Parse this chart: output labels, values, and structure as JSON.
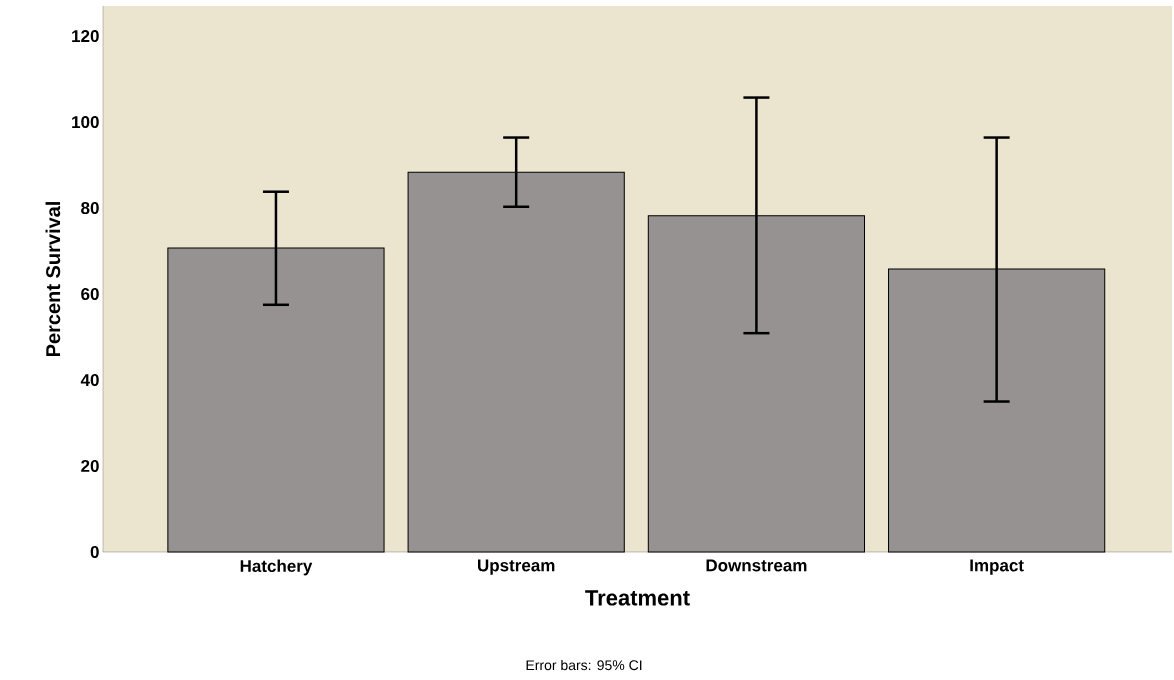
{
  "chart_data": {
    "type": "bar",
    "xlabel": "Treatment",
    "ylabel": "Percent Survival",
    "annotations": [
      "Error bars: 95% CI"
    ],
    "categories": [
      "Hatchery",
      "Upstream",
      "Downstream",
      "Impact"
    ],
    "values": [
      70.7,
      88.3,
      78.2,
      65.8
    ],
    "errors": [
      [
        57.5,
        83.8
      ],
      [
        80.3,
        96.4
      ],
      [
        50.9,
        105.7
      ],
      [
        35.0,
        96.4
      ]
    ],
    "color": "#959291",
    "ylim": [
      0,
      127
    ],
    "yticks": [
      0,
      20,
      40,
      60,
      80,
      100,
      120
    ]
  }
}
